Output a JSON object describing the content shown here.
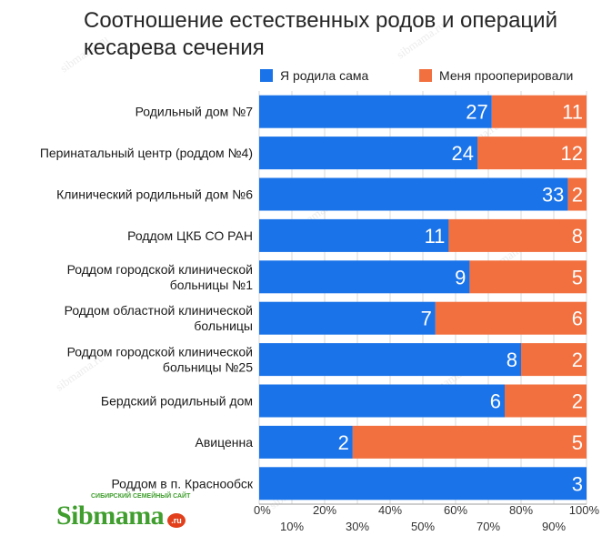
{
  "chart_data": {
    "type": "bar",
    "orientation": "horizontal",
    "stacked": "percent",
    "title_lines": [
      "Соотношение естественных родов и операций",
      "кесарева сечения"
    ],
    "categories": [
      [
        "Родильный дом №7"
      ],
      [
        "Перинатальный центр (роддом №4)"
      ],
      [
        "Клинический родильный дом №6"
      ],
      [
        "Роддом ЦКБ СО РАН"
      ],
      [
        "Роддом городской клинической",
        "больницы №1"
      ],
      [
        "Роддом областной клинической",
        "больницы"
      ],
      [
        "Роддом городской клинической",
        "больницы №25"
      ],
      [
        "Бердский родильный дом"
      ],
      [
        "Авиценна"
      ],
      [
        "Роддом в п. Краснообск"
      ]
    ],
    "series": [
      {
        "name": "Я родила сама",
        "color": "#1a73e8",
        "values": [
          27,
          24,
          33,
          11,
          9,
          7,
          8,
          6,
          2,
          3
        ]
      },
      {
        "name": "Меня прооперировали",
        "color": "#f2703f",
        "values": [
          11,
          12,
          2,
          8,
          5,
          6,
          2,
          2,
          5,
          0
        ]
      }
    ],
    "x_ticks_major": [
      "0%",
      "20%",
      "40%",
      "60%",
      "80%",
      "100%"
    ],
    "x_ticks_minor": [
      "10%",
      "30%",
      "50%",
      "70%",
      "90%"
    ],
    "xlim": [
      0,
      100
    ],
    "grid": true,
    "legend_position": "top"
  },
  "watermark_text": "sibmama.ru",
  "logo": {
    "word": "Sibmama",
    "tagline": "СИБИРСКИЙ СЕМЕЙНЫЙ САЙТ",
    "suffix": ".ru"
  }
}
